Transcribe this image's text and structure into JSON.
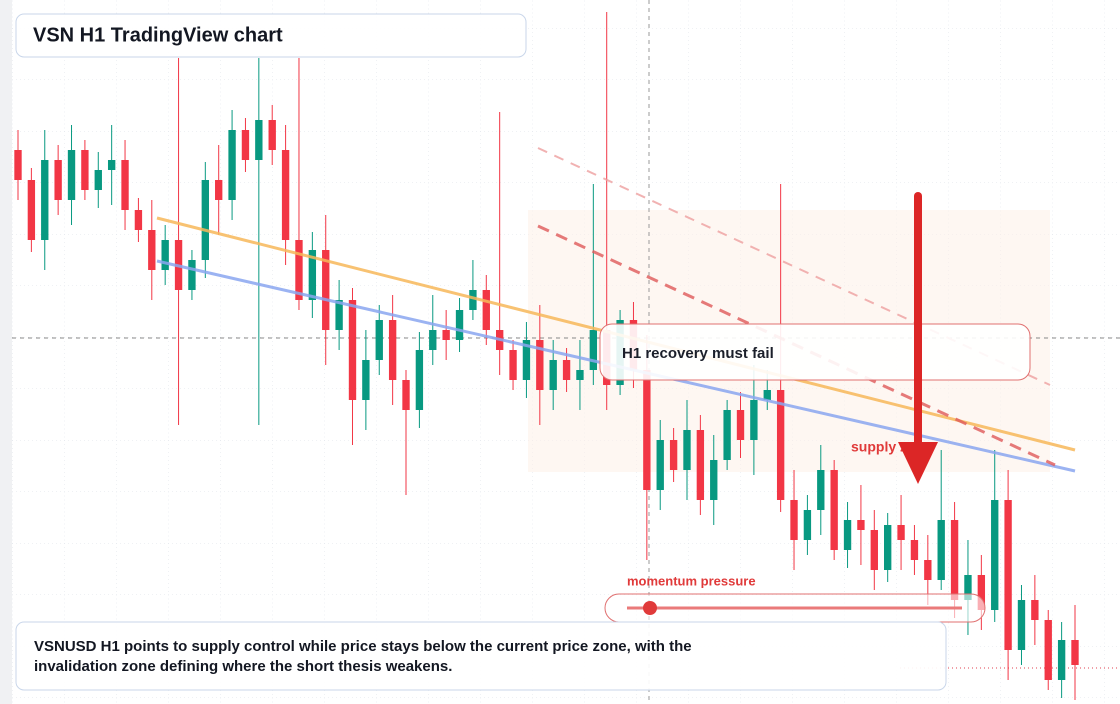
{
  "chart_data": {
    "type": "candlestick",
    "title": "VSN H1 TradingView chart",
    "annotations": [
      "H1 recovery must fail",
      "supply zone",
      "momentum pressure"
    ],
    "caption": "VSNUSD H1 points to supply control while price stays below the current price zone, with the invalidation zone defining where the short thesis weakens.",
    "open": [
      554,
      524,
      464,
      544,
      504,
      554,
      514,
      534,
      544,
      494,
      474,
      434,
      464,
      414,
      444,
      524,
      504,
      574,
      544,
      584,
      554,
      464,
      404,
      454,
      374,
      404,
      304,
      344,
      384,
      324,
      294,
      354,
      374,
      364,
      394,
      414,
      374,
      354,
      324,
      364,
      314,
      344,
      324,
      334,
      374,
      319,
      384,
      334,
      214,
      264,
      234,
      274,
      204,
      244,
      294,
      264,
      304,
      314,
      204,
      164,
      194,
      234,
      154,
      184,
      174,
      134,
      179,
      164,
      144,
      124,
      184,
      104,
      129,
      94,
      204,
      54,
      104,
      84,
      24,
      64
    ],
    "high": [
      574,
      536,
      574,
      559,
      579,
      564,
      552,
      579,
      564,
      506,
      504,
      479,
      646,
      454,
      542,
      559,
      594,
      586,
      646,
      599,
      579,
      646,
      472,
      489,
      424,
      416,
      374,
      399,
      409,
      334,
      372,
      409,
      394,
      406,
      444,
      429,
      592,
      364,
      382,
      399,
      364,
      356,
      364,
      520,
      692,
      394,
      402,
      369,
      284,
      276,
      304,
      289,
      269,
      304,
      312,
      339,
      334,
      520,
      234,
      209,
      259,
      244,
      202,
      219,
      194,
      191,
      209,
      179,
      169,
      254,
      202,
      164,
      149,
      254,
      234,
      119,
      129,
      94,
      82,
      99
    ],
    "low": [
      504,
      452,
      434,
      489,
      479,
      504,
      496,
      499,
      474,
      462,
      404,
      419,
      279,
      404,
      426,
      469,
      484,
      532,
      279,
      539,
      439,
      394,
      386,
      339,
      354,
      259,
      274,
      329,
      299,
      209,
      276,
      339,
      344,
      352,
      384,
      359,
      329,
      314,
      306,
      279,
      294,
      312,
      294,
      319,
      294,
      309,
      316,
      144,
      194,
      222,
      204,
      189,
      179,
      234,
      246,
      229,
      294,
      192,
      134,
      149,
      169,
      144,
      136,
      139,
      114,
      122,
      134,
      129,
      99,
      114,
      86,
      69,
      74,
      82,
      24,
      39,
      59,
      14,
      6,
      4
    ],
    "close": [
      524,
      464,
      544,
      504,
      554,
      514,
      534,
      544,
      494,
      474,
      434,
      464,
      414,
      444,
      524,
      504,
      574,
      544,
      584,
      554,
      464,
      404,
      454,
      374,
      404,
      304,
      344,
      384,
      324,
      294,
      354,
      374,
      364,
      394,
      414,
      374,
      354,
      324,
      364,
      314,
      344,
      324,
      334,
      374,
      319,
      384,
      334,
      214,
      264,
      234,
      274,
      204,
      244,
      294,
      264,
      304,
      314,
      204,
      164,
      194,
      234,
      154,
      184,
      174,
      134,
      179,
      164,
      144,
      124,
      184,
      104,
      129,
      94,
      204,
      54,
      104,
      84,
      24,
      64,
      39
    ],
    "up_color": "#089981",
    "down_color": "#f23645",
    "ylim": [
      0,
      704
    ],
    "grid": true
  }
}
